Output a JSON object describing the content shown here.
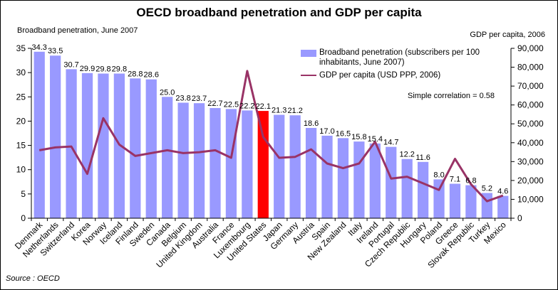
{
  "title": "OECD broadband penetration and GDP per capita",
  "left_axis_title": "Broadband penetration, June 2007",
  "right_axis_title": "GDP per capita, 2006",
  "source": "Source : OECD",
  "correlation": "Simple correlation = 0.58",
  "legend": {
    "bar": "Broadband penetration (subscribers per 100 inhabitants, June 2007)",
    "line": "GDP per capita (USD PPP, 2006)"
  },
  "colors": {
    "bar": "#9999ff",
    "highlight": "#ff0000",
    "line": "#993366"
  },
  "chart_data": {
    "type": "bar",
    "title": "OECD broadband penetration and GDP per capita",
    "categories": [
      "Denmark",
      "Netherlands",
      "Switzerland",
      "Korea",
      "Norway",
      "Iceland",
      "Finland",
      "Sweden",
      "Canada",
      "Belgium",
      "United Kingdom",
      "Australia",
      "France",
      "Luxembourg",
      "United States",
      "Japan",
      "Germany",
      "Austria",
      "Spain",
      "New Zealand",
      "Italy",
      "Ireland",
      "Portugal",
      "Czech Republic",
      "Hungary",
      "Poland",
      "Greece",
      "Slovak Republic",
      "Turkey",
      "Mexico"
    ],
    "highlight": "United States",
    "series": [
      {
        "name": "Broadband penetration (subscribers per 100 inhabitants, June 2007)",
        "type": "bar",
        "axis": "left",
        "values": [
          34.3,
          33.5,
          30.7,
          29.9,
          29.8,
          29.8,
          28.8,
          28.6,
          25.0,
          23.8,
          23.7,
          22.7,
          22.5,
          22.2,
          22.1,
          21.3,
          21.2,
          18.6,
          17.0,
          16.5,
          15.8,
          15.4,
          14.7,
          12.2,
          11.6,
          8.0,
          7.1,
          6.8,
          5.2,
          4.6
        ],
        "labels": [
          "34.3",
          "33.5",
          "30.7",
          "29.9",
          "29.8",
          "29.8",
          "28.8",
          "28.6",
          "25.0",
          "23.8",
          "23.7",
          "22.7",
          "22.5",
          "22.2",
          "22.1",
          "21.3",
          "21.2",
          "18.6",
          "17.0",
          "16.5",
          "15.8",
          "15.4",
          "14.7",
          "12.2",
          "11.6",
          "8.0",
          "7.1",
          "6.8",
          "5.2",
          "4.6"
        ]
      },
      {
        "name": "GDP per capita (USD PPP, 2006)",
        "type": "line",
        "axis": "right",
        "values": [
          36000,
          37500,
          38000,
          23500,
          53000,
          39000,
          33000,
          34500,
          36000,
          34500,
          35000,
          36000,
          32000,
          78000,
          43000,
          32000,
          32500,
          36500,
          29000,
          26500,
          29000,
          40500,
          21000,
          22000,
          18500,
          15000,
          31500,
          18000,
          9000,
          12000
        ]
      }
    ],
    "left_axis": {
      "ylim": [
        0,
        35
      ],
      "ticks": [
        "0",
        "5",
        "10",
        "15",
        "20",
        "25",
        "30",
        "35"
      ]
    },
    "right_axis": {
      "ylim": [
        0,
        90000
      ],
      "ticks": [
        "0",
        "10,000",
        "20,000",
        "30,000",
        "40,000",
        "50,000",
        "60,000",
        "70,000",
        "80,000",
        "90,000"
      ]
    },
    "grid": false
  }
}
